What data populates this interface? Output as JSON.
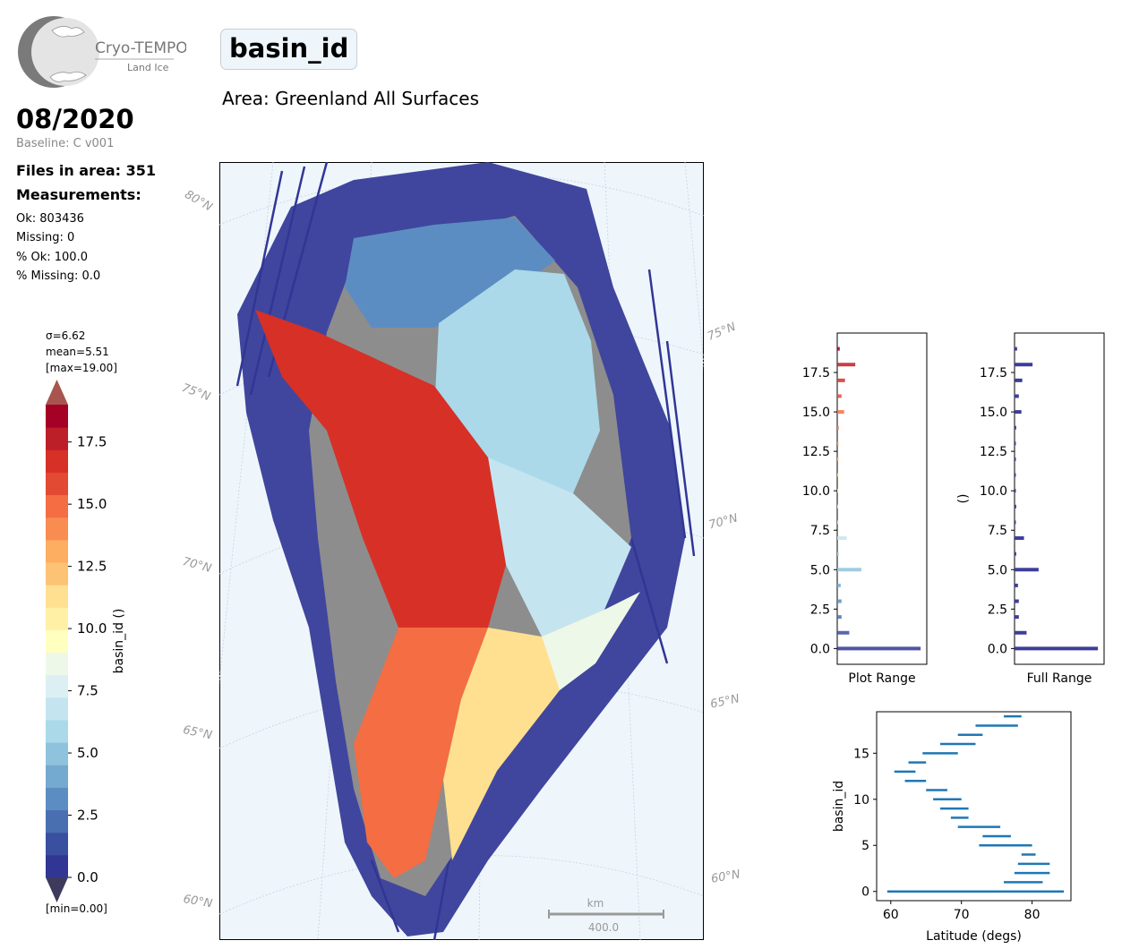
{
  "logo": {
    "name": "Cryo-TEMPO",
    "subtitle": "Land Ice"
  },
  "header": {
    "month": "08/2020",
    "baseline": "Baseline: C v001",
    "files": "Files in area: 351",
    "measurements_label": "Measurements:",
    "ok": "Ok: 803436",
    "missing": "Missing: 0",
    "pct_ok": "% Ok: 100.0",
    "pct_missing": "% Missing: 0.0"
  },
  "title": {
    "parameter": "basin_id",
    "area": "Area: Greenland All Surfaces"
  },
  "colorbar": {
    "sigma": "σ=6.62",
    "mean": "mean=5.51",
    "max": "[max=19.00]",
    "min": "[min=0.00]",
    "label": "basin_id ()",
    "ticks": [
      "0.0",
      "2.5",
      "5.0",
      "7.5",
      "10.0",
      "12.5",
      "15.0",
      "17.5"
    ],
    "tick_values": [
      0,
      2.5,
      5,
      7.5,
      10,
      12.5,
      15,
      17.5
    ],
    "range": [
      0,
      19
    ],
    "colors": [
      "#313695",
      "#3b4fa0",
      "#4a6fb0",
      "#5c8dc2",
      "#74a9d0",
      "#8fc3dd",
      "#abd9e9",
      "#c4e5f0",
      "#dcf0f3",
      "#eef8e8",
      "#ffffbf",
      "#fff0a6",
      "#fee090",
      "#fdc374",
      "#fdae61",
      "#f88c51",
      "#f46d43",
      "#e34a33",
      "#d73027",
      "#bd1f28",
      "#a50026"
    ],
    "under_color": "#3d3a5c",
    "over_color": "#a8544f"
  },
  "map": {
    "lat_labels": [
      "80°N",
      "75°N",
      "75°N",
      "70°N",
      "70°N",
      "65°N",
      "65°N",
      "60°N",
      "60°N"
    ],
    "scale_unit": "km",
    "scale_value": "400.0",
    "ocean_color": "#eef6fc"
  },
  "hist_plot_range": {
    "xlabel": "Plot Range",
    "yticks": [
      "0.0",
      "2.5",
      "5.0",
      "7.5",
      "10.0",
      "12.5",
      "15.0",
      "17.5"
    ],
    "ylim": [
      -1,
      20
    ]
  },
  "hist_full_range": {
    "xlabel": "Full Range",
    "ylabel": "()",
    "yticks": [
      "0.0",
      "2.5",
      "5.0",
      "7.5",
      "10.0",
      "12.5",
      "15.0",
      "17.5"
    ],
    "ylim": [
      -1,
      20
    ]
  },
  "chart_data": [
    {
      "type": "bar",
      "orientation": "horizontal",
      "title": "",
      "xlabel": "Plot Range",
      "ylabel": "",
      "categories": [
        0,
        1,
        2,
        3,
        4,
        5,
        6,
        7,
        8,
        9,
        10,
        11,
        12,
        13,
        14,
        15,
        16,
        17,
        18,
        19
      ],
      "values": [
        0.97,
        0.14,
        0.05,
        0.05,
        0.04,
        0.28,
        0.02,
        0.11,
        0.01,
        0.02,
        0.01,
        0.01,
        0.01,
        0.01,
        0.02,
        0.08,
        0.05,
        0.09,
        0.21,
        0.03
      ],
      "ylim": [
        -1,
        20
      ]
    },
    {
      "type": "bar",
      "orientation": "horizontal",
      "title": "",
      "xlabel": "Full Range",
      "ylabel": "()",
      "categories": [
        0,
        1,
        2,
        3,
        4,
        5,
        6,
        7,
        8,
        9,
        10,
        11,
        12,
        13,
        14,
        15,
        16,
        17,
        18,
        19
      ],
      "values": [
        0.97,
        0.14,
        0.05,
        0.05,
        0.04,
        0.28,
        0.02,
        0.11,
        0.01,
        0.02,
        0.01,
        0.01,
        0.01,
        0.01,
        0.02,
        0.08,
        0.05,
        0.09,
        0.21,
        0.03
      ],
      "ylim": [
        -1,
        20
      ]
    },
    {
      "type": "range",
      "title": "",
      "xlabel": "Latitude (degs)",
      "ylabel": "basin_id",
      "xticks": [
        "60",
        "70",
        "80"
      ],
      "yticks": [
        "0",
        "5",
        "10",
        "15"
      ],
      "xlim": [
        58,
        85.5
      ],
      "ylim": [
        -1,
        19.5
      ],
      "series": [
        {
          "values": [
            {
              "y": 0,
              "x0": 59.5,
              "x1": 84.5
            },
            {
              "y": 1,
              "x0": 76.0,
              "x1": 81.5
            },
            {
              "y": 2,
              "x0": 77.5,
              "x1": 82.5
            },
            {
              "y": 3,
              "x0": 78.0,
              "x1": 82.5
            },
            {
              "y": 4,
              "x0": 78.5,
              "x1": 80.5
            },
            {
              "y": 5,
              "x0": 72.5,
              "x1": 80.0
            },
            {
              "y": 6,
              "x0": 73.0,
              "x1": 77.0
            },
            {
              "y": 7,
              "x0": 69.5,
              "x1": 75.5
            },
            {
              "y": 8,
              "x0": 68.5,
              "x1": 71.0
            },
            {
              "y": 9,
              "x0": 67.0,
              "x1": 71.0
            },
            {
              "y": 10,
              "x0": 66.0,
              "x1": 70.0
            },
            {
              "y": 11,
              "x0": 65.0,
              "x1": 68.0
            },
            {
              "y": 12,
              "x0": 62.0,
              "x1": 65.0
            },
            {
              "y": 13,
              "x0": 60.5,
              "x1": 63.5
            },
            {
              "y": 14,
              "x0": 62.5,
              "x1": 65.0
            },
            {
              "y": 15,
              "x0": 64.5,
              "x1": 69.5
            },
            {
              "y": 16,
              "x0": 67.0,
              "x1": 72.0
            },
            {
              "y": 17,
              "x0": 69.5,
              "x1": 73.0
            },
            {
              "y": 18,
              "x0": 72.0,
              "x1": 78.0
            },
            {
              "y": 19,
              "x0": 76.0,
              "x1": 78.5
            }
          ]
        }
      ],
      "color": "#1f77b4"
    }
  ]
}
